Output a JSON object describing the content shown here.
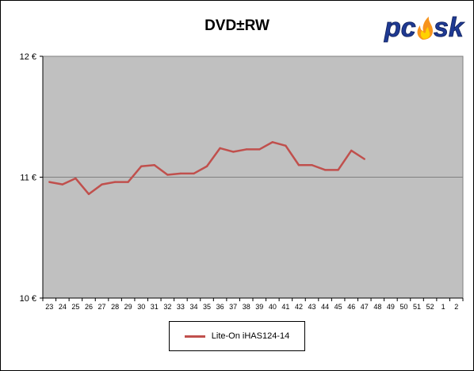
{
  "chart_data": {
    "type": "line",
    "title": "DVD±RW",
    "xlabel": "",
    "ylabel": "",
    "categories": [
      "23",
      "24",
      "25",
      "26",
      "27",
      "28",
      "29",
      "30",
      "31",
      "32",
      "33",
      "34",
      "35",
      "36",
      "37",
      "38",
      "39",
      "40",
      "41",
      "42",
      "43",
      "44",
      "45",
      "46",
      "47",
      "48",
      "49",
      "50",
      "51",
      "52",
      "1",
      "2"
    ],
    "y_tick_labels": [
      "12 €",
      "11 €",
      "10 €"
    ],
    "y_ticks": [
      12,
      11,
      10
    ],
    "ylim": [
      10,
      12
    ],
    "grid": true,
    "legend": "bottom",
    "series": [
      {
        "name": "Lite-On  iHAS124-14",
        "color": "#c0504d",
        "values": [
          10.96,
          10.94,
          10.99,
          10.86,
          10.94,
          10.96,
          10.96,
          11.09,
          11.1,
          11.02,
          11.03,
          11.03,
          11.09,
          11.24,
          11.21,
          11.23,
          11.23,
          11.29,
          11.26,
          11.1,
          11.1,
          11.06,
          11.06,
          11.22,
          11.15,
          null,
          null,
          null,
          null,
          null,
          null,
          null
        ]
      }
    ]
  },
  "colors": {
    "plot_background": "#c0c0c0",
    "series_line": "#c0504d",
    "gridline": "#808080"
  },
  "logo": {
    "text": "pcask",
    "icon": "flame-icon"
  }
}
